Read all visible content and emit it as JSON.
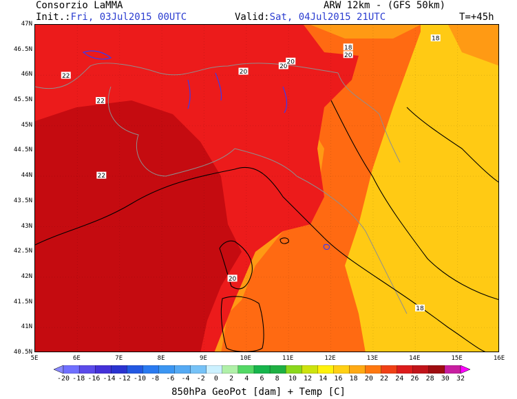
{
  "header": {
    "title": "Consorzio LaMMA",
    "model": "ARW 12km  - (GFS 50km)",
    "init_label": "Init.:",
    "init_value": "Fri, 03Jul2015 00UTC",
    "valid_label": "Valid:",
    "valid_value": "Sat, 04Jul2015 21UTC",
    "lead_time": "T=+45h"
  },
  "map": {
    "lat_labels": [
      "47N",
      "46.5N",
      "46N",
      "45.5N",
      "45N",
      "44.5N",
      "44N",
      "43.5N",
      "43N",
      "42.5N",
      "42N",
      "41.5N",
      "41N",
      "40.5N"
    ],
    "lon_labels": [
      "5E",
      "6E",
      "7E",
      "8E",
      "9E",
      "10E",
      "11E",
      "12E",
      "13E",
      "14E",
      "15E",
      "16E"
    ],
    "geopotential_labels": [
      {
        "value": "22",
        "lon": 5.73,
        "lat": 46.0
      },
      {
        "value": "22",
        "lon": 6.55,
        "lat": 45.5
      },
      {
        "value": "22",
        "lon": 6.57,
        "lat": 44.02
      },
      {
        "value": "20",
        "lon": 9.93,
        "lat": 46.08
      },
      {
        "value": "20",
        "lon": 10.88,
        "lat": 46.19
      },
      {
        "value": "20",
        "lon": 11.05,
        "lat": 46.28
      },
      {
        "value": "18",
        "lon": 12.41,
        "lat": 46.56
      },
      {
        "value": "20",
        "lon": 12.41,
        "lat": 46.41
      },
      {
        "value": "18",
        "lon": 14.48,
        "lat": 46.74
      },
      {
        "value": "20",
        "lon": 9.67,
        "lat": 41.98
      },
      {
        "value": "18",
        "lon": 14.11,
        "lat": 41.39
      }
    ],
    "zone_colors": [
      "#c50b10",
      "#ec1b1b",
      "#ff6a12",
      "#ff9a14",
      "#ffca14"
    ],
    "coast_color": "#000000",
    "border_color": "#8f8f8f",
    "lake_color": "#3a3af0"
  },
  "colorbar": {
    "labels": [
      "-20",
      "-18",
      "-16",
      "-14",
      "-12",
      "-10",
      "-8",
      "-6",
      "-4",
      "-2",
      "0",
      "2",
      "4",
      "6",
      "8",
      "10",
      "12",
      "14",
      "16",
      "18",
      "20",
      "22",
      "24",
      "26",
      "28",
      "30",
      "32"
    ],
    "colors": [
      "#8888ff",
      "#7070ff",
      "#5b4bea",
      "#4431d9",
      "#2a33d0",
      "#2358e2",
      "#2a7af0",
      "#3b96f2",
      "#55aaf4",
      "#76c2f7",
      "#ccf1ff",
      "#b0f0a8",
      "#53d865",
      "#16b54c",
      "#1eb043",
      "#8bd81c",
      "#cde30e",
      "#fff20c",
      "#ffd014",
      "#ffaa14",
      "#ff7810",
      "#f04015",
      "#dc1c1c",
      "#c1141a",
      "#9e0c10",
      "#c81ea0",
      "#ff00ff"
    ],
    "title": "850hPa GeoPot [dam] + Temp [C]"
  }
}
